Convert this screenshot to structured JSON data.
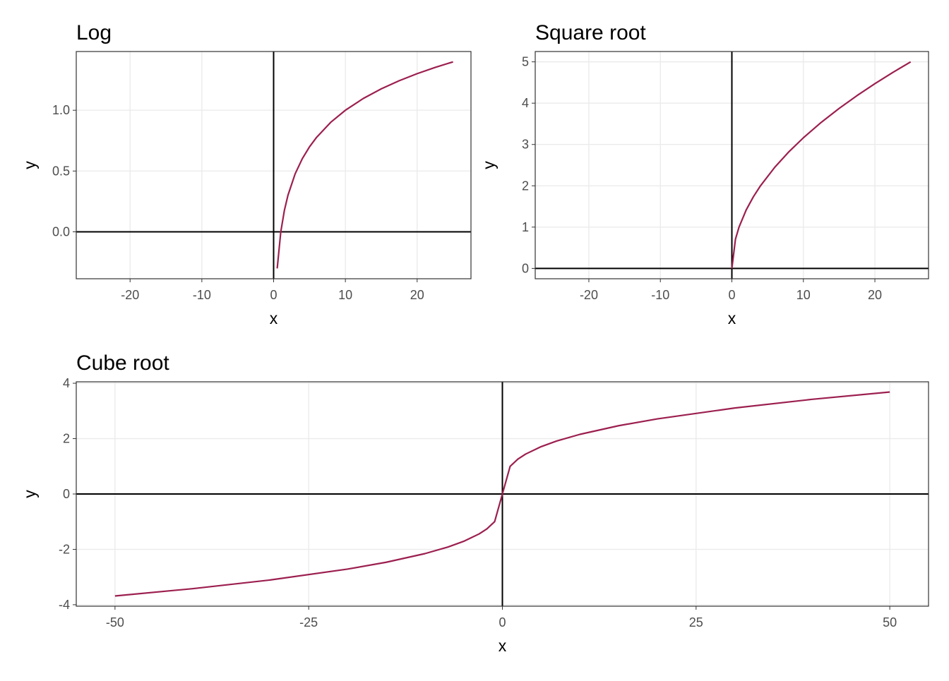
{
  "chart_data": [
    {
      "type": "line",
      "title": "Log",
      "x_label": "x",
      "y_label": "y",
      "x": [
        0.5,
        1,
        1.5,
        2,
        3,
        4,
        5,
        6,
        8,
        10,
        12.5,
        15,
        17.5,
        20,
        22.5,
        25
      ],
      "values": [
        -0.301,
        0,
        0.176,
        0.301,
        0.477,
        0.602,
        0.699,
        0.778,
        0.903,
        1,
        1.097,
        1.176,
        1.243,
        1.301,
        1.352,
        1.398
      ],
      "color": "#9c1f4f",
      "xlim": [
        -27.5,
        27.5
      ],
      "ylim": [
        -0.386,
        1.483
      ],
      "xticks": [
        -20,
        -10,
        0,
        10,
        20
      ],
      "yticks": [
        {
          "value": 0,
          "label": "0.0"
        },
        0.5,
        {
          "value": 1,
          "label": "1.0"
        }
      ],
      "grid": true,
      "hline": 0,
      "vline": 0
    },
    {
      "type": "line",
      "title": "Square root",
      "x_label": "x",
      "y_label": "y",
      "x": [
        0,
        0.5,
        1,
        2,
        3,
        4,
        6,
        8,
        10,
        12.5,
        15,
        17.5,
        20,
        22.5,
        25
      ],
      "values": [
        0,
        0.707,
        1,
        1.414,
        1.732,
        2,
        2.449,
        2.828,
        3.162,
        3.536,
        3.873,
        4.183,
        4.472,
        4.743,
        5
      ],
      "color": "#9c1f4f",
      "xlim": [
        -27.5,
        27.5
      ],
      "ylim": [
        -0.25,
        5.25
      ],
      "xticks": [
        -20,
        -10,
        0,
        10,
        20
      ],
      "yticks": [
        0,
        1,
        2,
        3,
        4,
        5
      ],
      "grid": true,
      "hline": 0,
      "vline": 0
    },
    {
      "type": "line",
      "title": "Cube root",
      "x_label": "x",
      "y_label": "y",
      "x": [
        -50,
        -40,
        -30,
        -20,
        -15,
        -10,
        -7,
        -5,
        -3,
        -2,
        -1,
        0,
        1,
        2,
        3,
        5,
        7,
        10,
        15,
        20,
        30,
        40,
        50
      ],
      "values": [
        -3.684,
        -3.42,
        -3.107,
        -2.714,
        -2.466,
        -2.154,
        -1.913,
        -1.71,
        -1.442,
        -1.26,
        -1,
        0,
        1,
        1.26,
        1.442,
        1.71,
        1.913,
        2.154,
        2.466,
        2.714,
        3.107,
        3.42,
        3.684
      ],
      "color": "#9c1f4f",
      "xlim": [
        -55,
        55
      ],
      "ylim": [
        -4.053,
        4.053
      ],
      "xticks": [
        -50,
        -25,
        0,
        25,
        50
      ],
      "yticks": [
        -4,
        -2,
        0,
        2,
        4
      ],
      "grid": true,
      "hline": 0,
      "vline": 0
    }
  ]
}
